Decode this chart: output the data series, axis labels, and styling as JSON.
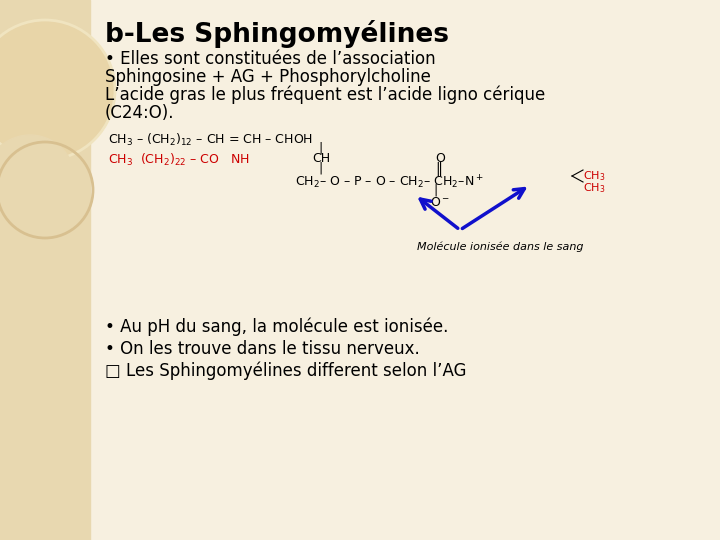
{
  "title": "b-Les Sphingomyélines",
  "bg_color": "#f7f0e0",
  "left_panel_color": "#e8d8b0",
  "text_color": "#000000",
  "red_color": "#cc0000",
  "blue_color": "#1010cc",
  "dark_red": "#8b0000",
  "title_fontsize": 19,
  "body_fontsize": 12,
  "chem_fontsize": 9,
  "small_fontsize": 8,
  "lines": [
    "• Elles sont constituées de l’association",
    "Sphingosine + AG + Phosphorylcholine",
    "L’acide gras le plus fréquent est l’acide ligno cérique",
    "(C24:O)."
  ],
  "bottom_lines": [
    "• Au pH du sang, la molécule est ionisée.",
    "• On les trouve dans le tissu nerveux.",
    "□ Les Sphingomyélines different selon l’AG"
  ]
}
